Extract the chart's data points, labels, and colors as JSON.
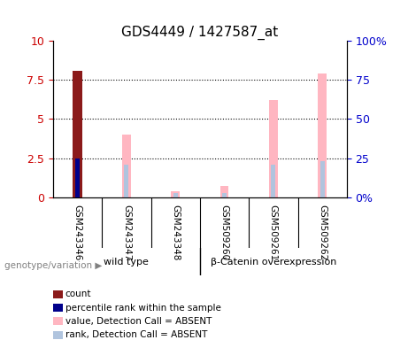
{
  "title": "GDS4449 / 1427587_at",
  "categories": [
    "GSM243346",
    "GSM243347",
    "GSM243348",
    "GSM509260",
    "GSM509261",
    "GSM509262"
  ],
  "left_ylim": [
    0,
    10
  ],
  "right_ylim": [
    0,
    100
  ],
  "left_yticks": [
    0,
    2.5,
    5,
    7.5,
    10
  ],
  "right_yticks": [
    0,
    25,
    50,
    75,
    100
  ],
  "left_yticklabels": [
    "0",
    "2.5",
    "5",
    "7.5",
    "10"
  ],
  "right_yticklabels": [
    "0%",
    "25",
    "50",
    "75",
    "100%"
  ],
  "count_values": [
    8.1,
    0,
    0,
    0,
    0,
    0
  ],
  "count_color": "#8B1A1A",
  "percentile_values": [
    2.5,
    0,
    0,
    0,
    0,
    0
  ],
  "percentile_color": "#00008B",
  "value_absent_values": [
    0,
    4.0,
    0.4,
    0.7,
    6.2,
    7.9
  ],
  "value_absent_color": "#FFB6C1",
  "rank_absent_values": [
    0,
    2.1,
    0.25,
    0.25,
    2.1,
    2.3
  ],
  "rank_absent_color": "#B0C4DE",
  "groups": [
    {
      "label": "wild type",
      "start": 0,
      "end": 3,
      "color": "#90EE90"
    },
    {
      "label": "β-Catenin overexpression",
      "start": 3,
      "end": 6,
      "color": "#90EE90"
    }
  ],
  "group_label_text": "genotype/variation",
  "bar_width": 0.35,
  "bg_color": "#FFFFFF",
  "plot_bg_color": "#FFFFFF",
  "tick_label_area_color": "#C0C0C0",
  "group_area_color": "#90EE90",
  "dotted_grid_color": "#000000",
  "left_tick_color": "#CC0000",
  "right_tick_color": "#0000CC",
  "legend_items": [
    {
      "label": "count",
      "color": "#8B1A1A",
      "marker": "s"
    },
    {
      "label": "percentile rank within the sample",
      "color": "#00008B",
      "marker": "s"
    },
    {
      "label": "value, Detection Call = ABSENT",
      "color": "#FFB6C1",
      "marker": "s"
    },
    {
      "label": "rank, Detection Call = ABSENT",
      "color": "#B0C4DE",
      "marker": "s"
    }
  ]
}
